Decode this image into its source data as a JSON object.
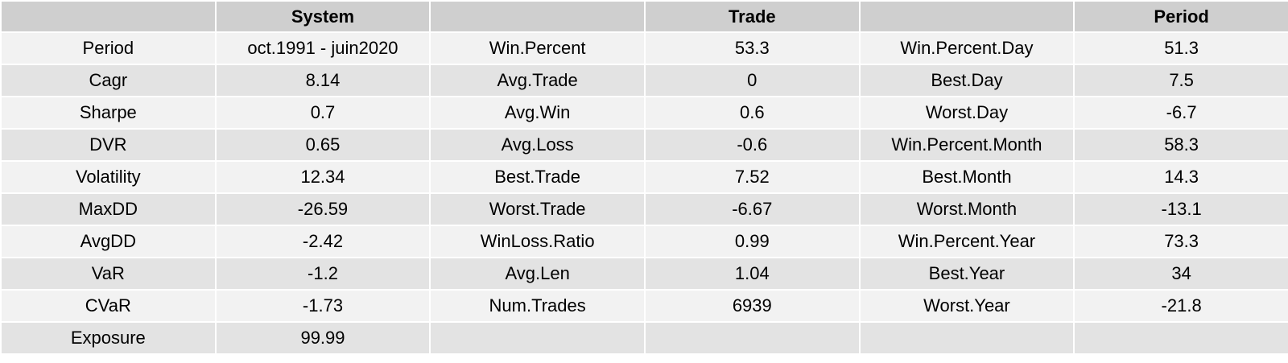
{
  "headers": [
    "",
    "System",
    "",
    "Trade",
    "",
    "Period"
  ],
  "rows": [
    [
      "Period",
      "oct.1991 - juin2020",
      "Win.Percent",
      "53.3",
      "Win.Percent.Day",
      "51.3"
    ],
    [
      "Cagr",
      "8.14",
      "Avg.Trade",
      "0",
      "Best.Day",
      "7.5"
    ],
    [
      "Sharpe",
      "0.7",
      "Avg.Win",
      "0.6",
      "Worst.Day",
      "-6.7"
    ],
    [
      "DVR",
      "0.65",
      "Avg.Loss",
      "-0.6",
      "Win.Percent.Month",
      "58.3"
    ],
    [
      "Volatility",
      "12.34",
      "Best.Trade",
      "7.52",
      "Best.Month",
      "14.3"
    ],
    [
      "MaxDD",
      "-26.59",
      "Worst.Trade",
      "-6.67",
      "Worst.Month",
      "-13.1"
    ],
    [
      "AvgDD",
      "-2.42",
      "WinLoss.Ratio",
      "0.99",
      "Win.Percent.Year",
      "73.3"
    ],
    [
      "VaR",
      "-1.2",
      "Avg.Len",
      "1.04",
      "Best.Year",
      "34"
    ],
    [
      "CVaR",
      "-1.73",
      "Num.Trades",
      "6939",
      "Worst.Year",
      "-21.8"
    ],
    [
      "Exposure",
      "99.99",
      "",
      "",
      "",
      ""
    ]
  ]
}
